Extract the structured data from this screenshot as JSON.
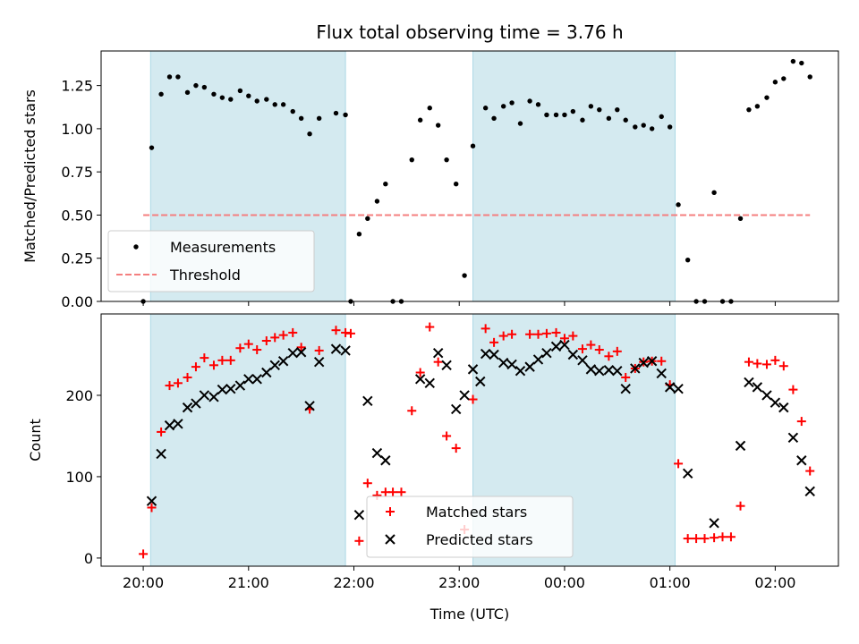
{
  "chart_data": [
    {
      "type": "scatter",
      "title": "Flux total observing time = 3.76 h",
      "xlabel": "",
      "ylabel": "Matched/Predicted stars",
      "ylim": [
        0,
        1.45
      ],
      "yticks": [
        0.0,
        0.25,
        0.5,
        0.75,
        1.0,
        1.25
      ],
      "ytick_labels": [
        "0.00",
        "0.25",
        "0.50",
        "0.75",
        "1.00",
        "1.25"
      ],
      "x_range_hours": [
        19.6,
        26.6
      ],
      "shaded_intervals": [
        [
          20.07,
          21.92
        ],
        [
          23.13,
          25.05
        ]
      ],
      "shade_color": "#d4eaf0",
      "legend": {
        "placement": "lower-left",
        "entries": [
          "Measurements",
          "Threshold"
        ]
      },
      "series": [
        {
          "name": "Measurements",
          "color": "#000000",
          "marker": "dot",
          "points": [
            [
              20.0,
              0.0
            ],
            [
              20.08,
              0.89
            ],
            [
              20.17,
              1.2
            ],
            [
              20.25,
              1.3
            ],
            [
              20.33,
              1.3
            ],
            [
              20.42,
              1.21
            ],
            [
              20.5,
              1.25
            ],
            [
              20.58,
              1.24
            ],
            [
              20.67,
              1.2
            ],
            [
              20.75,
              1.18
            ],
            [
              20.83,
              1.17
            ],
            [
              20.92,
              1.22
            ],
            [
              21.0,
              1.19
            ],
            [
              21.08,
              1.16
            ],
            [
              21.17,
              1.17
            ],
            [
              21.25,
              1.14
            ],
            [
              21.33,
              1.14
            ],
            [
              21.42,
              1.1
            ],
            [
              21.5,
              1.06
            ],
            [
              21.58,
              0.97
            ],
            [
              21.67,
              1.06
            ],
            [
              21.83,
              1.09
            ],
            [
              21.92,
              1.08
            ],
            [
              21.97,
              0.0
            ],
            [
              22.05,
              0.39
            ],
            [
              22.13,
              0.48
            ],
            [
              22.22,
              0.58
            ],
            [
              22.3,
              0.68
            ],
            [
              22.37,
              0.0
            ],
            [
              22.45,
              0.0
            ],
            [
              22.55,
              0.82
            ],
            [
              22.63,
              1.05
            ],
            [
              22.72,
              1.12
            ],
            [
              22.8,
              1.02
            ],
            [
              22.88,
              0.82
            ],
            [
              22.97,
              0.68
            ],
            [
              23.05,
              0.15
            ],
            [
              23.13,
              0.9
            ],
            [
              23.25,
              1.12
            ],
            [
              23.33,
              1.06
            ],
            [
              23.42,
              1.13
            ],
            [
              23.5,
              1.15
            ],
            [
              23.58,
              1.03
            ],
            [
              23.67,
              1.16
            ],
            [
              23.75,
              1.14
            ],
            [
              23.83,
              1.08
            ],
            [
              23.92,
              1.08
            ],
            [
              24.0,
              1.08
            ],
            [
              24.08,
              1.1
            ],
            [
              24.17,
              1.05
            ],
            [
              24.25,
              1.13
            ],
            [
              24.33,
              1.11
            ],
            [
              24.42,
              1.06
            ],
            [
              24.5,
              1.11
            ],
            [
              24.58,
              1.05
            ],
            [
              24.67,
              1.01
            ],
            [
              24.75,
              1.02
            ],
            [
              24.83,
              1.0
            ],
            [
              24.92,
              1.07
            ],
            [
              25.0,
              1.01
            ],
            [
              25.08,
              0.56
            ],
            [
              25.17,
              0.24
            ],
            [
              25.25,
              0.0
            ],
            [
              25.33,
              0.0
            ],
            [
              25.42,
              0.63
            ],
            [
              25.5,
              0.0
            ],
            [
              25.58,
              0.0
            ],
            [
              25.67,
              0.48
            ],
            [
              25.75,
              1.11
            ],
            [
              25.83,
              1.13
            ],
            [
              25.92,
              1.18
            ],
            [
              26.0,
              1.27
            ],
            [
              26.08,
              1.29
            ],
            [
              26.17,
              1.39
            ],
            [
              26.25,
              1.38
            ],
            [
              26.33,
              1.3
            ]
          ]
        },
        {
          "name": "Threshold",
          "color": "#f47f7f",
          "style": "dashed",
          "points": [
            [
              20.0,
              0.5
            ],
            [
              26.33,
              0.5
            ]
          ]
        }
      ]
    },
    {
      "type": "scatter",
      "title": "",
      "xlabel": "Time (UTC)",
      "ylabel": "Count",
      "ylim": [
        -10,
        300
      ],
      "yticks": [
        0,
        100,
        200
      ],
      "ytick_labels": [
        "0",
        "100",
        "200"
      ],
      "x_range_hours": [
        19.6,
        26.6
      ],
      "xticks": [
        20,
        21,
        22,
        23,
        24,
        25,
        26
      ],
      "xtick_labels": [
        "20:00",
        "21:00",
        "22:00",
        "23:00",
        "00:00",
        "01:00",
        "02:00"
      ],
      "shaded_intervals": [
        [
          20.07,
          21.92
        ],
        [
          23.13,
          25.05
        ]
      ],
      "shade_color": "#d4eaf0",
      "legend": {
        "placement": "lower-center",
        "entries": [
          "Matched stars",
          "Predicted stars"
        ]
      },
      "series": [
        {
          "name": "Matched stars",
          "color": "#ff0000",
          "marker": "plus",
          "points": [
            [
              20.0,
              5
            ],
            [
              20.08,
              62
            ],
            [
              20.17,
              155
            ],
            [
              20.25,
              212
            ],
            [
              20.33,
              215
            ],
            [
              20.42,
              222
            ],
            [
              20.5,
              235
            ],
            [
              20.58,
              246
            ],
            [
              20.67,
              237
            ],
            [
              20.75,
              243
            ],
            [
              20.83,
              243
            ],
            [
              20.92,
              258
            ],
            [
              21.0,
              263
            ],
            [
              21.08,
              256
            ],
            [
              21.17,
              267
            ],
            [
              21.25,
              271
            ],
            [
              21.33,
              274
            ],
            [
              21.42,
              277
            ],
            [
              21.5,
              259
            ],
            [
              21.58,
              183
            ],
            [
              21.67,
              255
            ],
            [
              21.83,
              280
            ],
            [
              21.92,
              277
            ],
            [
              21.97,
              276
            ],
            [
              22.05,
              21
            ],
            [
              22.13,
              92
            ],
            [
              22.22,
              77
            ],
            [
              22.3,
              81
            ],
            [
              22.37,
              81
            ],
            [
              22.45,
              81
            ],
            [
              22.55,
              181
            ],
            [
              22.63,
              228
            ],
            [
              22.72,
              284
            ],
            [
              22.8,
              241
            ],
            [
              22.88,
              150
            ],
            [
              22.97,
              135
            ],
            [
              23.05,
              35
            ],
            [
              23.13,
              195
            ],
            [
              23.25,
              282
            ],
            [
              23.33,
              265
            ],
            [
              23.42,
              273
            ],
            [
              23.5,
              275
            ],
            [
              23.67,
              275
            ],
            [
              23.75,
              275
            ],
            [
              23.83,
              276
            ],
            [
              23.92,
              277
            ],
            [
              24.0,
              270
            ],
            [
              24.08,
              273
            ],
            [
              24.17,
              257
            ],
            [
              24.25,
              262
            ],
            [
              24.33,
              256
            ],
            [
              24.42,
              248
            ],
            [
              24.5,
              254
            ],
            [
              24.58,
              222
            ],
            [
              24.67,
              233
            ],
            [
              24.75,
              241
            ],
            [
              24.83,
              242
            ],
            [
              24.92,
              242
            ],
            [
              25.0,
              213
            ],
            [
              25.08,
              116
            ],
            [
              25.17,
              24
            ],
            [
              25.25,
              24
            ],
            [
              25.33,
              24
            ],
            [
              25.42,
              25
            ],
            [
              25.5,
              26
            ],
            [
              25.58,
              26
            ],
            [
              25.67,
              64
            ],
            [
              25.75,
              241
            ],
            [
              25.83,
              239
            ],
            [
              25.92,
              238
            ],
            [
              26.0,
              243
            ],
            [
              26.08,
              236
            ],
            [
              26.17,
              207
            ],
            [
              26.25,
              168
            ],
            [
              26.33,
              107
            ]
          ]
        },
        {
          "name": "Predicted stars",
          "color": "#000000",
          "marker": "x",
          "points": [
            [
              20.08,
              70
            ],
            [
              20.17,
              128
            ],
            [
              20.25,
              163
            ],
            [
              20.33,
              165
            ],
            [
              20.42,
              185
            ],
            [
              20.5,
              190
            ],
            [
              20.58,
              200
            ],
            [
              20.67,
              198
            ],
            [
              20.75,
              207
            ],
            [
              20.83,
              208
            ],
            [
              20.92,
              212
            ],
            [
              21.0,
              220
            ],
            [
              21.08,
              220
            ],
            [
              21.17,
              228
            ],
            [
              21.25,
              237
            ],
            [
              21.33,
              242
            ],
            [
              21.42,
              252
            ],
            [
              21.5,
              253
            ],
            [
              21.58,
              187
            ],
            [
              21.67,
              241
            ],
            [
              21.83,
              257
            ],
            [
              21.92,
              255
            ],
            [
              22.05,
              53
            ],
            [
              22.13,
              193
            ],
            [
              22.22,
              129
            ],
            [
              22.3,
              120
            ],
            [
              22.63,
              220
            ],
            [
              22.72,
              215
            ],
            [
              22.8,
              252
            ],
            [
              22.88,
              237
            ],
            [
              22.97,
              183
            ],
            [
              23.05,
              200
            ],
            [
              23.13,
              232
            ],
            [
              23.2,
              217
            ],
            [
              23.25,
              251
            ],
            [
              23.33,
              250
            ],
            [
              23.42,
              240
            ],
            [
              23.5,
              238
            ],
            [
              23.58,
              230
            ],
            [
              23.67,
              235
            ],
            [
              23.75,
              244
            ],
            [
              23.83,
              252
            ],
            [
              23.92,
              260
            ],
            [
              24.0,
              262
            ],
            [
              24.08,
              250
            ],
            [
              24.17,
              243
            ],
            [
              24.25,
              232
            ],
            [
              24.33,
              230
            ],
            [
              24.42,
              231
            ],
            [
              24.5,
              230
            ],
            [
              24.58,
              208
            ],
            [
              24.67,
              233
            ],
            [
              24.75,
              240
            ],
            [
              24.83,
              242
            ],
            [
              24.92,
              227
            ],
            [
              25.0,
              210
            ],
            [
              25.08,
              208
            ],
            [
              25.17,
              104
            ],
            [
              25.42,
              43
            ],
            [
              25.67,
              138
            ],
            [
              25.75,
              216
            ],
            [
              25.83,
              210
            ],
            [
              25.92,
              200
            ],
            [
              26.0,
              191
            ],
            [
              26.08,
              185
            ],
            [
              26.17,
              148
            ],
            [
              26.25,
              120
            ],
            [
              26.33,
              82
            ]
          ]
        }
      ]
    }
  ]
}
